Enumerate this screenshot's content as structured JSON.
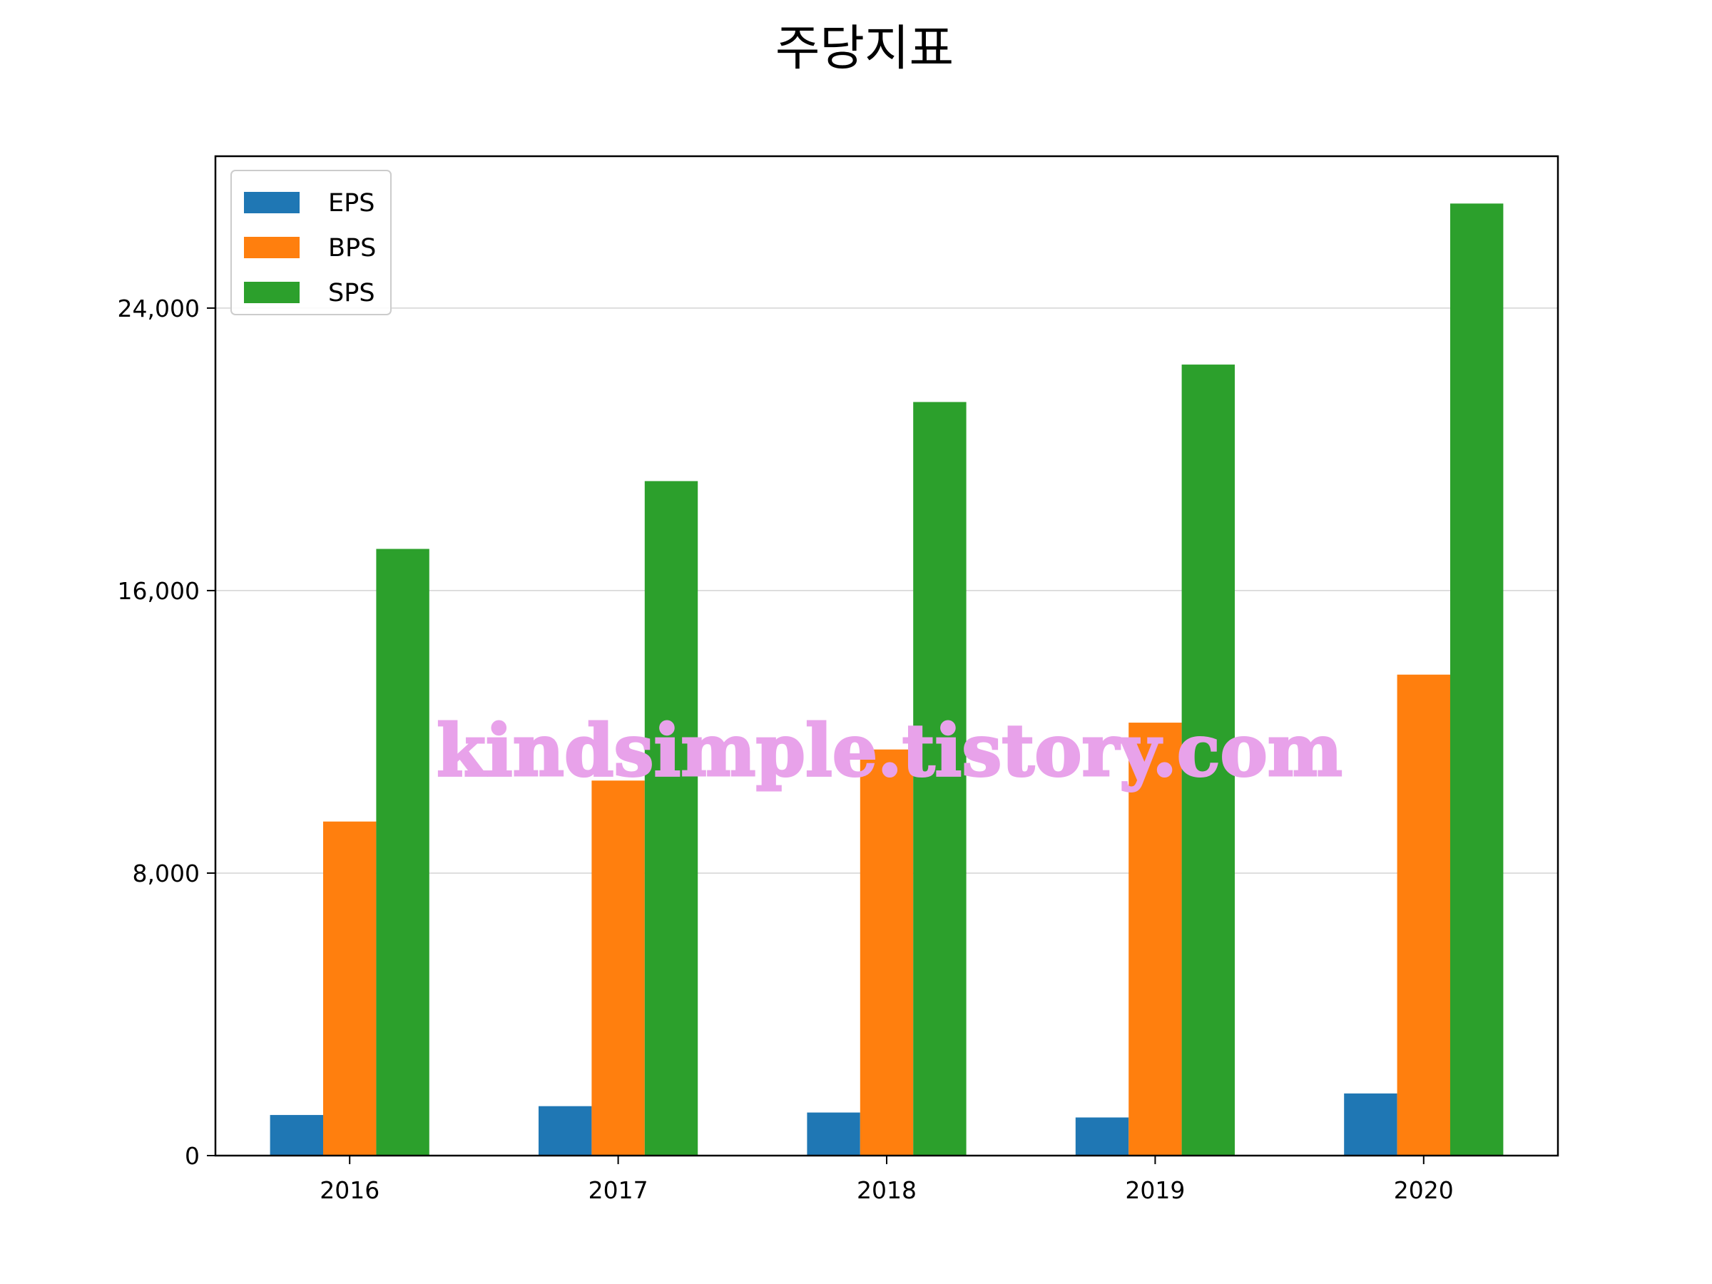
{
  "chart_data": {
    "type": "bar",
    "title": "주당지표",
    "xlabel": "",
    "ylabel": "",
    "categories": [
      "2016",
      "2017",
      "2018",
      "2019",
      "2020"
    ],
    "series": [
      {
        "name": "EPS",
        "color": "#1f77b4",
        "values": [
          1150,
          1400,
          1220,
          1080,
          1760
        ]
      },
      {
        "name": "BPS",
        "color": "#ff7f0e",
        "values": [
          9460,
          10620,
          11500,
          12260,
          13620
        ]
      },
      {
        "name": "SPS",
        "color": "#2ca02c",
        "values": [
          17180,
          19100,
          21340,
          22400,
          26960
        ]
      }
    ],
    "ylim": [
      0,
      28300
    ],
    "yticks": [
      {
        "value": 0,
        "label": "0"
      },
      {
        "value": 8000,
        "label": "8,000"
      },
      {
        "value": 16000,
        "label": "16,000"
      },
      {
        "value": 24000,
        "label": "24,000"
      }
    ],
    "grid": {
      "y": true,
      "x": false,
      "color": "#d3d3d3"
    },
    "legend": {
      "position": "top-left"
    },
    "watermark": "kindsimple.tistory.com"
  }
}
